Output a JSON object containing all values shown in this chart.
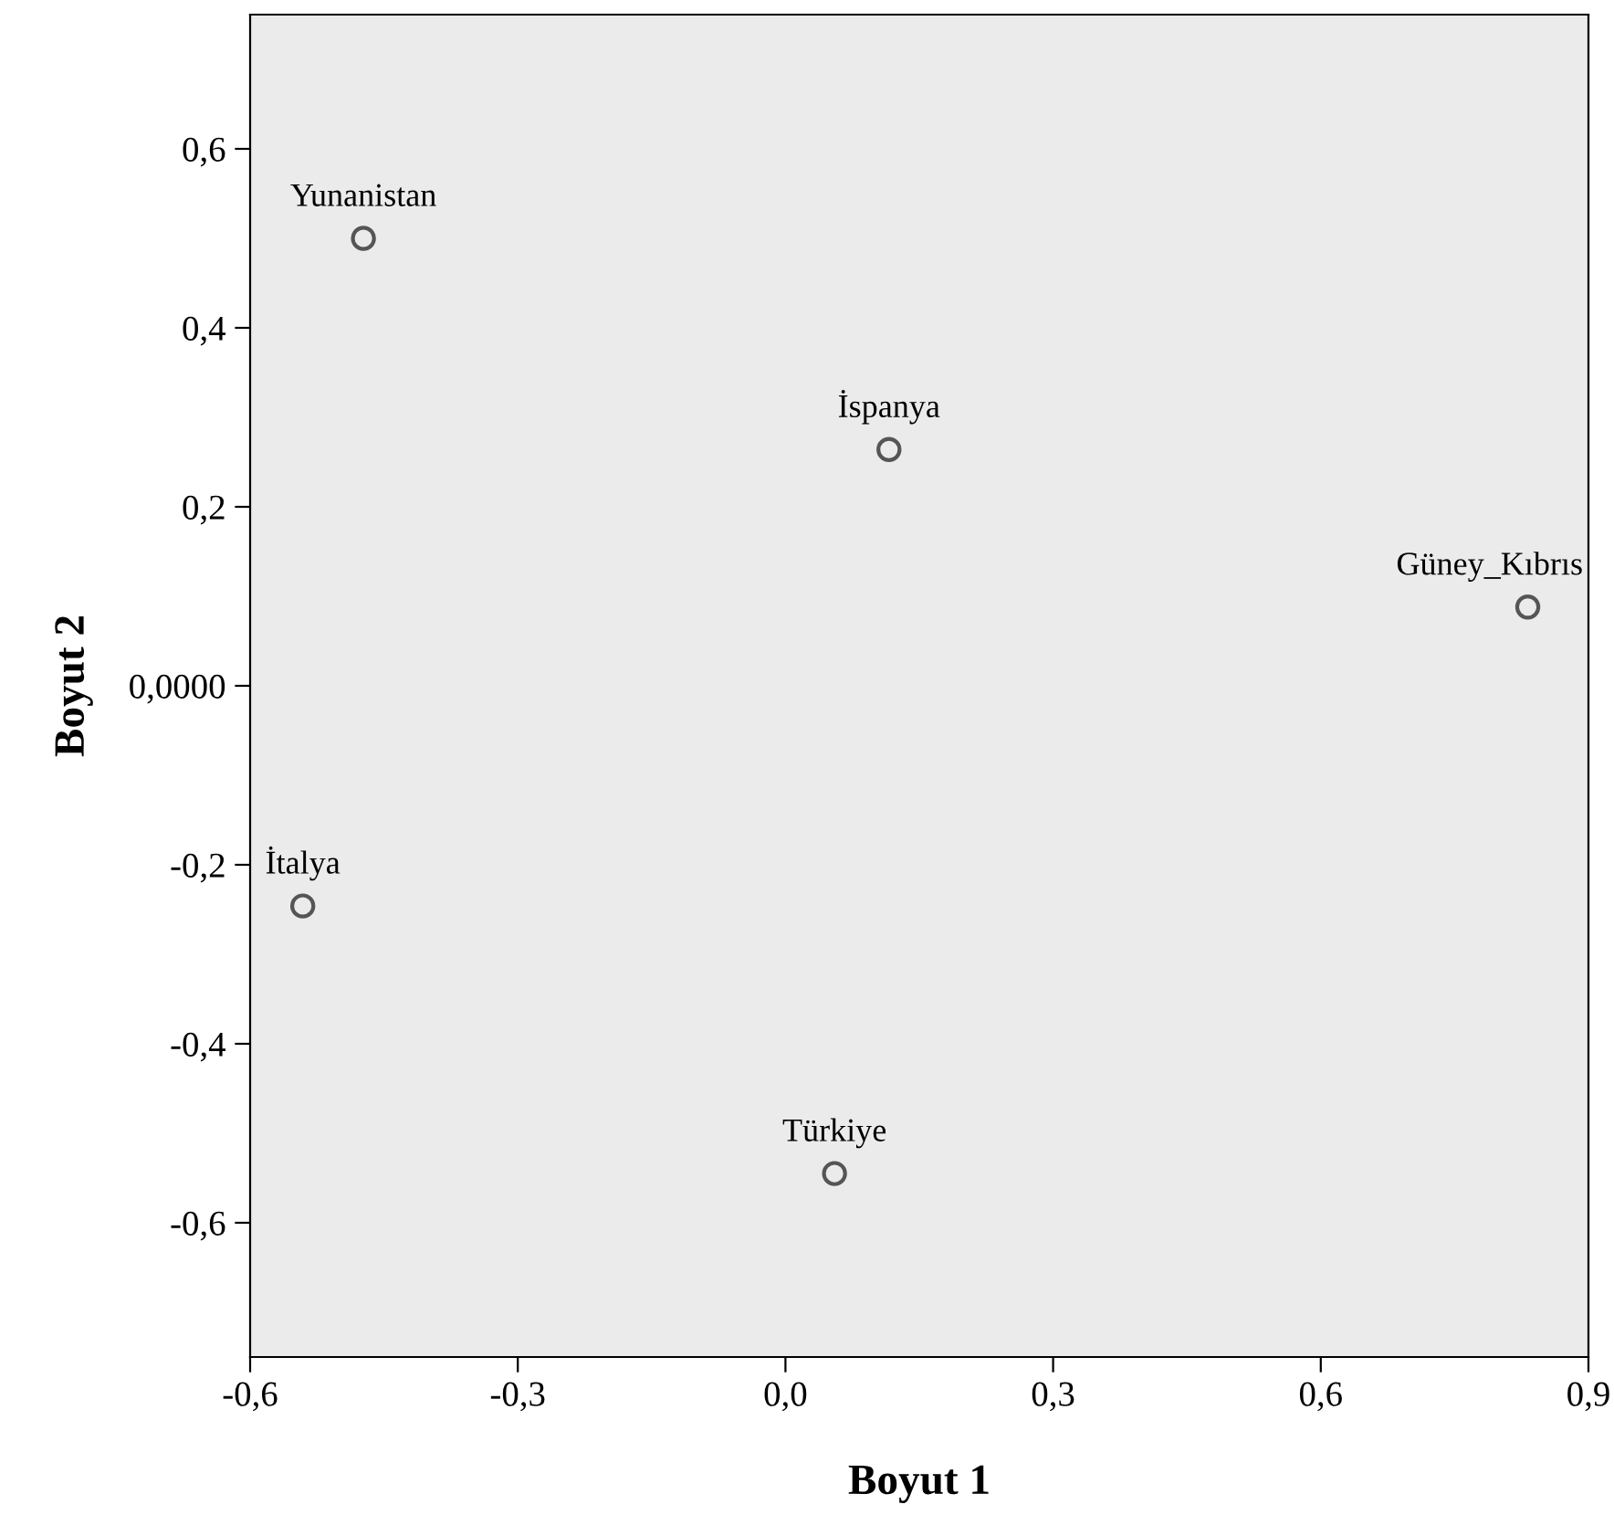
{
  "chart_data": {
    "type": "scatter",
    "xlabel": "Boyut 1",
    "ylabel": "Boyut 2",
    "x": [
      -0.473,
      0.116,
      0.832,
      -0.541,
      0.055
    ],
    "values": [
      0.5,
      0.264,
      0.088,
      -0.246,
      -0.545
    ],
    "color": "#555555",
    "marker": "circle",
    "grid": false,
    "legend": false,
    "xlim": [
      -0.6,
      0.9
    ],
    "ylim": [
      -0.75,
      0.75
    ],
    "xticks": [
      {
        "value": -0.6,
        "label": "-0,6"
      },
      {
        "value": -0.3,
        "label": "-0,3"
      },
      {
        "value": 0.0,
        "label": "0,0"
      },
      {
        "value": 0.3,
        "label": "0,3"
      },
      {
        "value": 0.6,
        "label": "0,6"
      },
      {
        "value": 0.9,
        "label": "0,9"
      }
    ],
    "yticks": [
      {
        "value": -0.6,
        "label": "-0,6"
      },
      {
        "value": -0.4,
        "label": "-0,4"
      },
      {
        "value": -0.2,
        "label": "-0,2"
      },
      {
        "value": 0.0,
        "label": "0,0000"
      },
      {
        "value": 0.2,
        "label": "0,2"
      },
      {
        "value": 0.4,
        "label": "0,4"
      },
      {
        "value": 0.6,
        "label": "0,6"
      }
    ],
    "annotations": [
      {
        "text": "Yunanistan",
        "x": -0.473,
        "y": 0.5
      },
      {
        "text": "İspanya",
        "x": 0.116,
        "y": 0.264
      },
      {
        "text": "Güney_Kıbrıs",
        "x": 0.832,
        "y": 0.088
      },
      {
        "text": "İtalya",
        "x": -0.541,
        "y": -0.246
      },
      {
        "text": "Türkiye",
        "x": 0.055,
        "y": -0.545
      }
    ]
  }
}
